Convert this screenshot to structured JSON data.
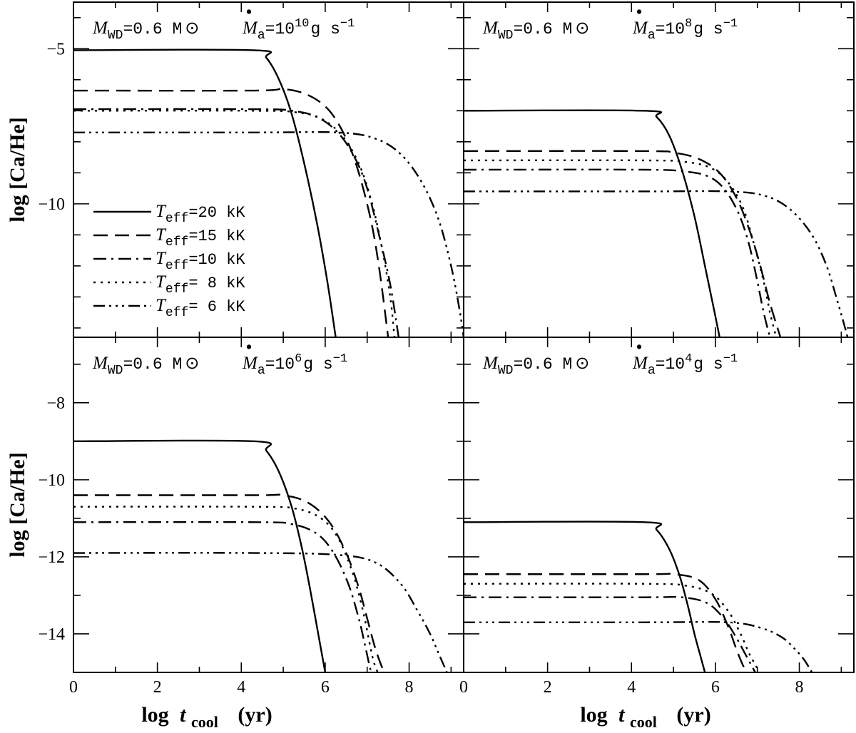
{
  "figure": {
    "xlabel_prefix": "log",
    "xlabel_var": "t",
    "xlabel_sub": "cool",
    "xlabel_unit": "(yr)",
    "ylabel": "log [Ca/He]"
  },
  "annotations": {
    "mass_label": "M",
    "mass_sub": "WD",
    "mass_value": "=0.6 M",
    "mass_symbol": "⊙",
    "rate_label": "M",
    "rate_dot": "•",
    "rate_sub": "a",
    "rate_prefix": "=10",
    "rate_unit": "g s",
    "rate_unit_exp": "−1"
  },
  "legend": [
    {
      "var": "T",
      "sub": "eff",
      "text": "=20 kK",
      "style": "solid"
    },
    {
      "var": "T",
      "sub": "eff",
      "text": "=15 kK",
      "style": "dashed"
    },
    {
      "var": "T",
      "sub": "eff",
      "text": "=10 kK",
      "style": "dashdot"
    },
    {
      "var": "T",
      "sub": "eff",
      "text": "= 8 kK",
      "style": "dotted"
    },
    {
      "var": "T",
      "sub": "eff",
      "text": "= 6 kK",
      "style": "dashdotdotdot"
    }
  ],
  "chart_data": [
    {
      "type": "line",
      "panel": "top-left",
      "accretion_exponent": "10",
      "xlim": [
        0,
        9.3
      ],
      "ylim": [
        -14.3,
        -3.5
      ],
      "xticks": [
        0,
        2,
        4,
        6,
        8
      ],
      "yticks": [
        -5,
        -10
      ],
      "series": [
        {
          "name": "T_eff=20 kK",
          "plateau": -5.05,
          "x": [
            0,
            4.3,
            4.6,
            4.9,
            5.2,
            5.5,
            5.8,
            6.05,
            6.25
          ],
          "y": [
            -5.05,
            -5.05,
            -5.3,
            -6.0,
            -7.1,
            -8.7,
            -10.6,
            -12.5,
            -14.3
          ]
        },
        {
          "name": "T_eff=15 kK",
          "plateau": -6.35,
          "x": [
            0,
            4.3,
            5.0,
            5.6,
            6.1,
            6.5,
            6.8,
            7.1,
            7.3,
            7.5
          ],
          "y": [
            -6.35,
            -6.35,
            -6.3,
            -6.5,
            -7.0,
            -7.9,
            -9.0,
            -10.6,
            -12.2,
            -14.3
          ]
        },
        {
          "name": "T_eff=10 kK",
          "plateau": -6.95,
          "x": [
            0,
            4.3,
            5.2,
            5.8,
            6.3,
            6.7,
            7.0,
            7.3,
            7.55,
            7.75
          ],
          "y": [
            -6.95,
            -6.95,
            -7.0,
            -7.2,
            -7.7,
            -8.5,
            -9.5,
            -11.1,
            -12.6,
            -14.3
          ]
        },
        {
          "name": "T_eff= 8 kK",
          "plateau": -7.0,
          "x": [
            0,
            4.3,
            5.3,
            5.9,
            6.4,
            6.8,
            7.1,
            7.35,
            7.55,
            7.65
          ],
          "y": [
            -7.0,
            -7.0,
            -7.05,
            -7.25,
            -7.8,
            -8.7,
            -9.9,
            -11.4,
            -13.0,
            -14.3
          ]
        },
        {
          "name": "T_eff= 6 kK",
          "plateau": -7.7,
          "x": [
            0,
            4.3,
            6.3,
            7.2,
            7.8,
            8.3,
            8.7,
            9.0,
            9.2,
            9.3
          ],
          "y": [
            -7.7,
            -7.7,
            -7.7,
            -7.9,
            -8.4,
            -9.3,
            -10.5,
            -12.0,
            -13.4,
            -14.3
          ]
        }
      ]
    },
    {
      "type": "line",
      "panel": "top-right",
      "accretion_exponent": "8",
      "xlim": [
        0,
        9.3
      ],
      "ylim": [
        -14.3,
        -3.5
      ],
      "xticks": [
        0,
        2,
        4,
        6,
        8
      ],
      "yticks": [],
      "series": [
        {
          "name": "T_eff=20 kK",
          "plateau": -7.0,
          "x": [
            0,
            4.3,
            4.6,
            4.9,
            5.2,
            5.5,
            5.75,
            5.95,
            6.1
          ],
          "y": [
            -7.0,
            -7.0,
            -7.2,
            -7.8,
            -8.9,
            -10.4,
            -12.0,
            -13.3,
            -14.3
          ]
        },
        {
          "name": "T_eff=15 kK",
          "plateau": -8.3,
          "x": [
            0,
            4.3,
            5.0,
            5.6,
            6.1,
            6.5,
            6.8,
            7.05,
            7.3,
            7.55
          ],
          "y": [
            -8.3,
            -8.3,
            -8.35,
            -8.55,
            -9.0,
            -9.8,
            -10.8,
            -11.9,
            -13.2,
            -14.3
          ]
        },
        {
          "name": "T_eff=10 kK",
          "plateau": -8.9,
          "x": [
            0,
            4.3,
            5.2,
            5.8,
            6.2,
            6.55,
            6.8,
            7.0,
            7.15,
            7.3
          ],
          "y": [
            -8.9,
            -8.9,
            -8.95,
            -9.1,
            -9.5,
            -10.3,
            -11.3,
            -12.5,
            -13.5,
            -14.3
          ]
        },
        {
          "name": "T_eff= 8 kK",
          "plateau": -8.6,
          "x": [
            0,
            4.3,
            5.3,
            5.9,
            6.3,
            6.65,
            6.9,
            7.15,
            7.3,
            7.45
          ],
          "y": [
            -8.6,
            -8.6,
            -8.65,
            -8.85,
            -9.3,
            -10.1,
            -11.2,
            -12.5,
            -13.5,
            -14.3
          ]
        },
        {
          "name": "T_eff= 6 kK",
          "plateau": -9.6,
          "x": [
            0,
            4.3,
            6.3,
            7.2,
            7.8,
            8.3,
            8.65,
            8.9,
            9.05,
            9.15
          ],
          "y": [
            -9.6,
            -9.6,
            -9.6,
            -9.75,
            -10.2,
            -11.0,
            -12.0,
            -13.1,
            -13.8,
            -14.3
          ]
        }
      ]
    },
    {
      "type": "line",
      "panel": "bottom-left",
      "accretion_exponent": "6",
      "xlim": [
        0,
        9.3
      ],
      "ylim": [
        -15,
        -6.3
      ],
      "xticks": [
        0,
        2,
        4,
        6,
        8
      ],
      "yticks": [
        -8,
        -10,
        -12,
        -14
      ],
      "series": [
        {
          "name": "T_eff=20 kK",
          "plateau": -9.0,
          "x": [
            0,
            4.3,
            4.6,
            4.9,
            5.2,
            5.45,
            5.65,
            5.85,
            6.0
          ],
          "y": [
            -9.0,
            -9.0,
            -9.25,
            -9.8,
            -10.7,
            -11.8,
            -12.9,
            -14.1,
            -15.0
          ]
        },
        {
          "name": "T_eff=15 kK",
          "plateau": -10.4,
          "x": [
            0,
            4.3,
            5.0,
            5.6,
            6.1,
            6.5,
            6.8,
            7.0,
            7.2,
            7.4
          ],
          "y": [
            -10.4,
            -10.4,
            -10.4,
            -10.6,
            -11.1,
            -11.9,
            -12.8,
            -13.6,
            -14.4,
            -15.0
          ]
        },
        {
          "name": "T_eff=10 kK",
          "plateau": -11.1,
          "x": [
            0,
            4.3,
            5.2,
            5.8,
            6.2,
            6.55,
            6.8,
            6.95,
            7.05,
            7.1
          ],
          "y": [
            -11.1,
            -11.1,
            -11.15,
            -11.4,
            -11.9,
            -12.7,
            -13.6,
            -14.3,
            -14.8,
            -15.0
          ]
        },
        {
          "name": "T_eff= 8 kK",
          "plateau": -10.7,
          "x": [
            0,
            4.3,
            5.3,
            5.9,
            6.3,
            6.65,
            6.9,
            7.05,
            7.15,
            7.25
          ],
          "y": [
            -10.7,
            -10.7,
            -10.75,
            -11.0,
            -11.5,
            -12.4,
            -13.4,
            -14.2,
            -14.7,
            -15.0
          ]
        },
        {
          "name": "T_eff= 6 kK",
          "plateau": -11.9,
          "x": [
            0,
            4.3,
            6.3,
            7.2,
            7.8,
            8.2,
            8.5,
            8.7,
            8.82,
            8.9
          ],
          "y": [
            -11.9,
            -11.9,
            -11.95,
            -12.15,
            -12.7,
            -13.4,
            -14.0,
            -14.5,
            -14.8,
            -15.0
          ]
        }
      ]
    },
    {
      "type": "line",
      "panel": "bottom-right",
      "accretion_exponent": "4",
      "xlim": [
        0,
        9.3
      ],
      "ylim": [
        -15,
        -6.3
      ],
      "xticks": [
        0,
        2,
        4,
        6,
        8
      ],
      "yticks": [],
      "series": [
        {
          "name": "T_eff=20 kK",
          "plateau": -11.1,
          "x": [
            0,
            4.3,
            4.6,
            4.9,
            5.15,
            5.35,
            5.5,
            5.65,
            5.75
          ],
          "y": [
            -11.1,
            -11.1,
            -11.3,
            -11.8,
            -12.5,
            -13.3,
            -14.0,
            -14.6,
            -15.0
          ]
        },
        {
          "name": "T_eff=15 kK",
          "plateau": -12.45,
          "x": [
            0,
            4.3,
            5.0,
            5.6,
            6.0,
            6.3,
            6.5,
            6.65,
            6.75
          ],
          "y": [
            -12.45,
            -12.45,
            -12.45,
            -12.6,
            -13.1,
            -13.8,
            -14.4,
            -14.8,
            -15.0
          ]
        },
        {
          "name": "T_eff=10 kK",
          "plateau": -13.05,
          "x": [
            0,
            4.3,
            5.2,
            5.8,
            6.2,
            6.5,
            6.7,
            6.85,
            6.95
          ],
          "y": [
            -13.05,
            -13.05,
            -13.05,
            -13.2,
            -13.6,
            -14.1,
            -14.5,
            -14.8,
            -15.0
          ]
        },
        {
          "name": "T_eff= 8 kK",
          "plateau": -12.7,
          "x": [
            0,
            4.3,
            5.3,
            5.9,
            6.3,
            6.6,
            6.8,
            6.95,
            7.05
          ],
          "y": [
            -12.7,
            -12.7,
            -12.75,
            -12.95,
            -13.4,
            -14.0,
            -14.5,
            -14.8,
            -15.0
          ]
        },
        {
          "name": "T_eff= 6 kK",
          "plateau": -13.7,
          "x": [
            0,
            4.3,
            6.3,
            7.1,
            7.6,
            7.9,
            8.1,
            8.22,
            8.3
          ],
          "y": [
            -13.7,
            -13.7,
            -13.7,
            -13.85,
            -14.1,
            -14.4,
            -14.65,
            -14.85,
            -15.0
          ]
        }
      ]
    }
  ]
}
